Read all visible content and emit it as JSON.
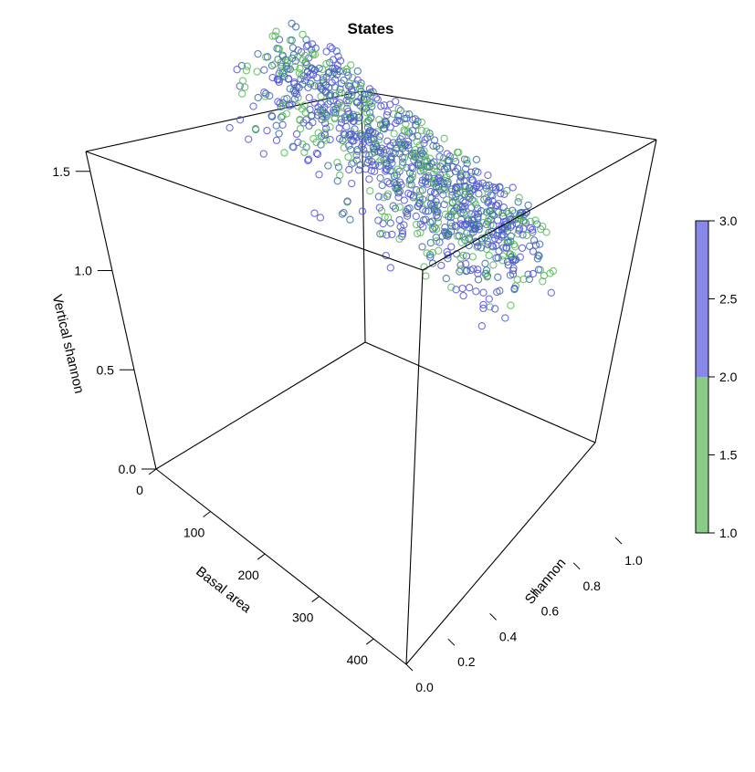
{
  "chart_data": {
    "type": "scatter",
    "subtype": "3d-scatter",
    "title": "States",
    "axes": {
      "x": {
        "label": "Basal area",
        "range": [
          0,
          460
        ],
        "ticks": [
          0,
          100,
          200,
          300,
          400
        ],
        "tick_labels": [
          "0",
          "100",
          "200",
          "300",
          "400"
        ]
      },
      "y": {
        "label": "Shannon",
        "range": [
          0,
          1.0
        ],
        "ticks": [
          0.0,
          0.2,
          0.4,
          0.6,
          0.8,
          1.0
        ],
        "tick_labels": [
          "0.0",
          "0.2",
          "0.4",
          "0.6",
          "0.8",
          "1.0"
        ]
      },
      "z": {
        "label": "Vertical shannon",
        "range": [
          0,
          1.6
        ],
        "ticks": [
          0.0,
          0.5,
          1.0,
          1.5
        ],
        "tick_labels": [
          "0.0",
          "0.5",
          "1.0",
          "1.5"
        ]
      }
    },
    "colorbar": {
      "range": [
        1.0,
        3.0
      ],
      "ticks": [
        "1.0",
        "1.5",
        "2.0",
        "2.5",
        "3.0"
      ],
      "bands": [
        {
          "from": 1.0,
          "to": 2.0,
          "color": "#88cc88"
        },
        {
          "from": 2.0,
          "to": 3.0,
          "color": "#8888e8"
        }
      ]
    },
    "colors": {
      "state1": "#55bb55",
      "state2": "#3a6fa0",
      "state3": "#5555dd"
    },
    "cluster": {
      "basal_area_range": [
        0,
        460
      ],
      "shannon_range": [
        0.55,
        1.0
      ],
      "vertical_shannon_range": [
        1.2,
        1.65
      ],
      "states": [
        1,
        2,
        3
      ]
    },
    "grid": false,
    "legend": "colorbar-right"
  }
}
